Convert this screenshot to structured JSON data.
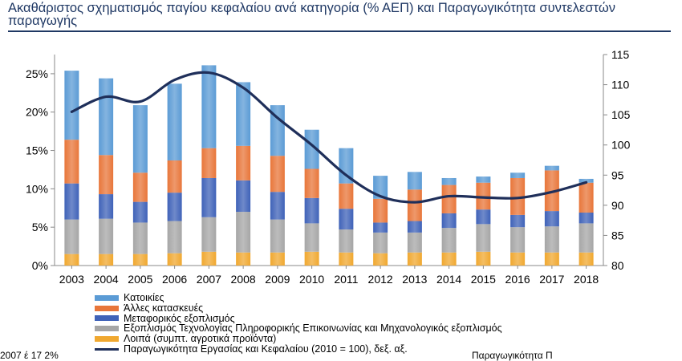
{
  "title": "Ακαθάριστος σχηματισμός παγίου κεφαλαίου ανά κατηγορία (% ΑΕΠ) και Παραγωγικότητα συντελεστών παραγωγής",
  "chart_data": {
    "type": "bar",
    "stacked": true,
    "categories": [
      "2003",
      "2004",
      "2005",
      "2006",
      "2007",
      "2008",
      "2009",
      "2010",
      "2011",
      "2012",
      "2013",
      "2014",
      "2015",
      "2016",
      "2017",
      "2018"
    ],
    "ylim": [
      0,
      0.275
    ],
    "y_ticks": [
      "0%",
      "5%",
      "10%",
      "15%",
      "20%",
      "25%"
    ],
    "y2lim": [
      80,
      115
    ],
    "y2_ticks": [
      "80",
      "85",
      "90",
      "95",
      "100",
      "105",
      "110",
      "115"
    ],
    "grid": false,
    "legend_position": "bottom",
    "series": [
      {
        "name": "Λοιπά (συμπτ. αγροτικά προϊόντα)",
        "color": "#f0a830",
        "values": [
          1.5,
          1.5,
          1.5,
          1.6,
          1.8,
          1.7,
          1.7,
          1.8,
          1.7,
          1.6,
          1.7,
          1.7,
          1.8,
          1.7,
          1.7,
          1.7
        ]
      },
      {
        "name": "Εξοπλισμός Τεχνολογίας Πληροφορικής Επικοινωνίας και Μηχανολογικός εξοπλισμός",
        "color": "#a6a6a6",
        "values": [
          4.5,
          4.6,
          4.1,
          4.2,
          4.5,
          5.3,
          4.3,
          3.7,
          3.0,
          2.7,
          2.6,
          3.2,
          3.6,
          3.3,
          3.4,
          3.8
        ]
      },
      {
        "name": "Μεταφορικός εξοπλισμός",
        "color": "#3f62b8",
        "values": [
          4.7,
          3.2,
          2.7,
          3.7,
          5.1,
          4.1,
          3.6,
          3.3,
          2.7,
          1.3,
          1.5,
          1.9,
          1.9,
          1.6,
          2.0,
          1.4
        ]
      },
      {
        "name": "Άλλες κατασκευές",
        "color": "#e8763a",
        "values": [
          5.7,
          5.1,
          3.8,
          4.2,
          3.9,
          4.5,
          4.7,
          3.8,
          3.3,
          3.1,
          4.1,
          3.7,
          3.5,
          4.8,
          5.3,
          3.9
        ]
      },
      {
        "name": "Κατοικίες",
        "color": "#5b9bd5",
        "values": [
          9.0,
          10.0,
          8.8,
          10.0,
          10.8,
          8.3,
          6.6,
          5.1,
          4.6,
          3.0,
          2.3,
          0.9,
          0.8,
          0.7,
          0.6,
          0.5
        ]
      }
    ],
    "line_series": {
      "name": "Παραγωγικότητα Εργασίας και Κεφαλαίου (2010 = 100), δεξ. αξ.",
      "color": "#1f2f5a",
      "axis": "right",
      "values": [
        105.5,
        108.0,
        107.2,
        110.8,
        112.0,
        109.5,
        104.5,
        100.0,
        95.0,
        91.5,
        90.5,
        91.5,
        91.3,
        91.2,
        92.2,
        93.8
      ]
    }
  },
  "legend": [
    {
      "label": "Κατοικίες",
      "color": "#5b9bd5",
      "kind": "bar"
    },
    {
      "label": "Άλλες κατασκευές",
      "color": "#e8763a",
      "kind": "bar"
    },
    {
      "label": "Μεταφορικός εξοπλισμός",
      "color": "#3f62b8",
      "kind": "bar"
    },
    {
      "label": "Εξοπλισμός Τεχνολογίας Πληροφορικής Επικοινωνίας και Μηχανολογικός εξοπλισμός",
      "color": "#a6a6a6",
      "kind": "bar"
    },
    {
      "label": "Λοιπά (συμπτ. αγροτικά προϊόντα)",
      "color": "#f0a830",
      "kind": "bar"
    },
    {
      "label": "Παραγωγικότητα Εργασίας και Κεφαλαίου (2010 = 100), δεξ. αξ.",
      "color": "#1f2f5a",
      "kind": "line"
    }
  ],
  "clipped_text": {
    "left": "2007 έ 17 2%",
    "right": "Παραγωγικότητα Π"
  }
}
